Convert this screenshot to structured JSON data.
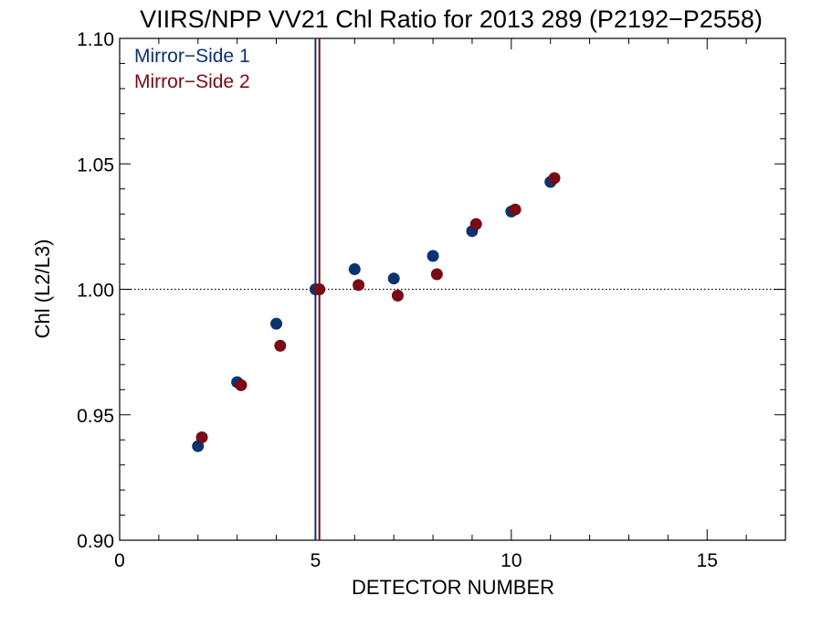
{
  "chart_data": {
    "type": "scatter",
    "title": "VIIRS/NPP VV21 Chl Ratio for 2013 289 (P2192−P2558)",
    "xlabel": "DETECTOR NUMBER",
    "ylabel": "Chl (L2/L3)",
    "xlim": [
      0,
      17
    ],
    "ylim": [
      0.9,
      1.1
    ],
    "x_ticks": [
      "0",
      "5",
      "10",
      "15"
    ],
    "y_ticks": [
      "0.90",
      "0.95",
      "1.00",
      "1.05",
      "1.10"
    ],
    "reference_y": 1.0,
    "legend_position": "top-left",
    "series": [
      {
        "name": "Mirror−Side 1",
        "color": "#0d3270",
        "x": [
          2,
          3,
          4,
          5,
          6,
          7,
          8,
          9,
          10,
          11
        ],
        "y": [
          0.9375,
          0.963,
          0.9863,
          1.0,
          1.008,
          1.0043,
          1.0133,
          1.0232,
          1.031,
          1.0428
        ],
        "marker_line_x": 5.0
      },
      {
        "name": "Mirror−Side 2",
        "color": "#7a0a14",
        "x": [
          2.1,
          3.1,
          4.1,
          5.1,
          6.1,
          7.1,
          8.1,
          9.1,
          10.1,
          11.1
        ],
        "y": [
          0.941,
          0.9618,
          0.9775,
          1.0,
          1.0017,
          0.9975,
          1.006,
          1.026,
          1.0318,
          1.0443
        ],
        "marker_line_x": 5.1
      }
    ]
  }
}
